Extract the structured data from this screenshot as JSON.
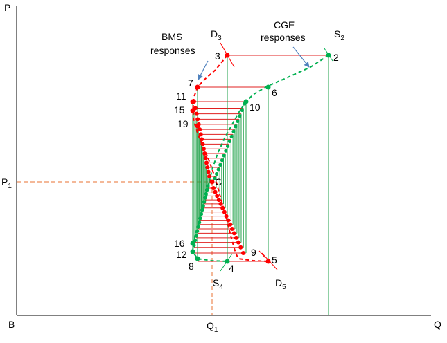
{
  "axes": {
    "y_label": "P",
    "x_label": "Q",
    "origin_label": "B",
    "p1_label": "P",
    "p1_sub": "1",
    "q1_label": "Q",
    "q1_sub": "1"
  },
  "curves": {
    "d3_label": "D",
    "d3_sub": "3",
    "s2_label": "S",
    "s2_sub": "2",
    "s4_label": "S",
    "s4_sub": "4",
    "d5_label": "D",
    "d5_sub": "5"
  },
  "annotations": {
    "bms_line1": "BMS",
    "bms_line2": "responses",
    "cge_line1": "CGE",
    "cge_line2": "responses"
  },
  "step_labels": {
    "n2": "2",
    "n3": "3",
    "n4": "4",
    "n5": "5",
    "n6": "6",
    "n7": "7",
    "n8": "8",
    "n9": "9",
    "n10": "10",
    "n11": "11",
    "n12": "12",
    "n15": "15",
    "n16": "16",
    "n19": "19"
  },
  "center_label": "C",
  "colors": {
    "bms": "#ff0000",
    "cge": "#00b050",
    "axis": "#000000",
    "dashed_guides": "#e97132",
    "arrow": "#4f81bd",
    "red_hlines": "#e02020",
    "green_vlines": "#1fa048"
  }
}
